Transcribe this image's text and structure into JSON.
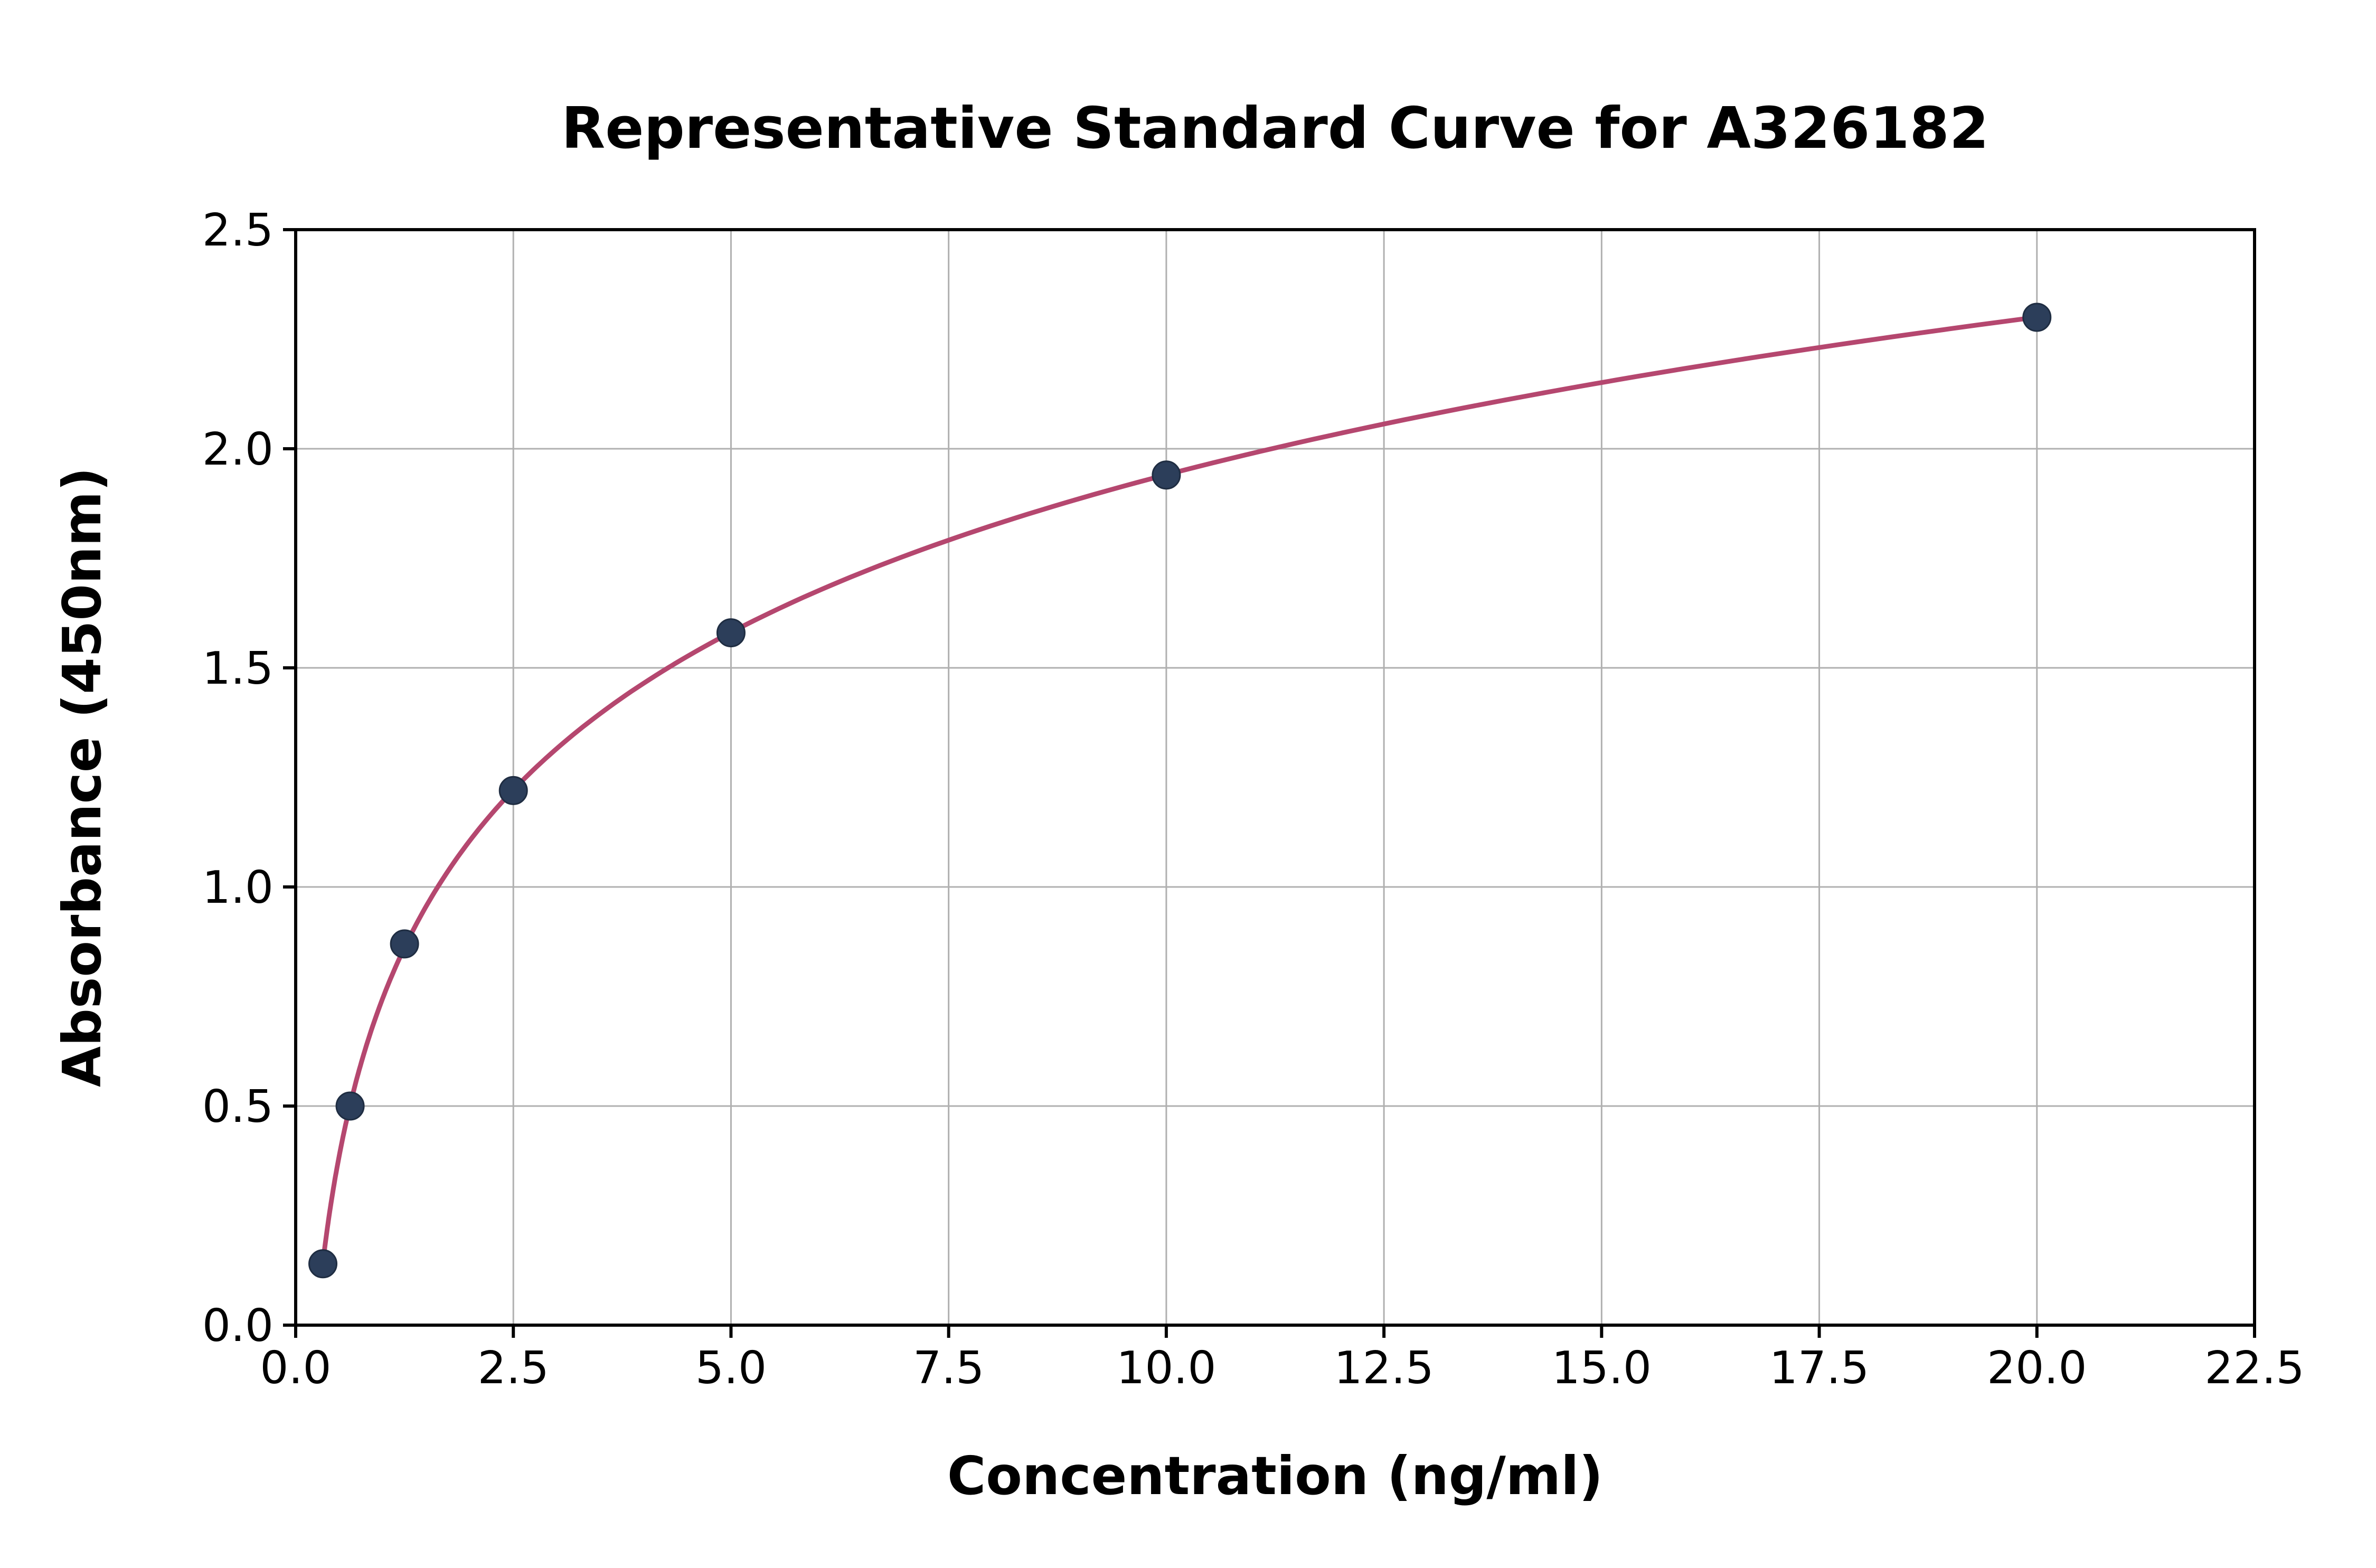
{
  "chart_data": {
    "type": "scatter",
    "title": "Representative Standard Curve for A326182",
    "xlabel": "Concentration (ng/ml)",
    "ylabel": "Absorbance (450nm)",
    "xlim": [
      0,
      22.5
    ],
    "ylim": [
      0,
      2.5
    ],
    "xticks": [
      0.0,
      2.5,
      5.0,
      7.5,
      10.0,
      12.5,
      15.0,
      17.5,
      20.0,
      22.5
    ],
    "yticks": [
      0.0,
      0.5,
      1.0,
      1.5,
      2.0,
      2.5
    ],
    "grid": true,
    "legend_position": "none",
    "fit": "logarithmic",
    "points": [
      {
        "x": 0.3125,
        "y": 0.14
      },
      {
        "x": 0.625,
        "y": 0.5
      },
      {
        "x": 1.25,
        "y": 0.87
      },
      {
        "x": 2.5,
        "y": 1.22
      },
      {
        "x": 5.0,
        "y": 1.58
      },
      {
        "x": 10.0,
        "y": 1.94
      },
      {
        "x": 20.0,
        "y": 2.3
      }
    ],
    "colors": {
      "curve": "#b5476f",
      "marker": "#2c3e5a",
      "marker_edge": "#1f2d42",
      "grid": "#b0b0b0",
      "axis": "#000000",
      "background": "#ffffff"
    }
  }
}
